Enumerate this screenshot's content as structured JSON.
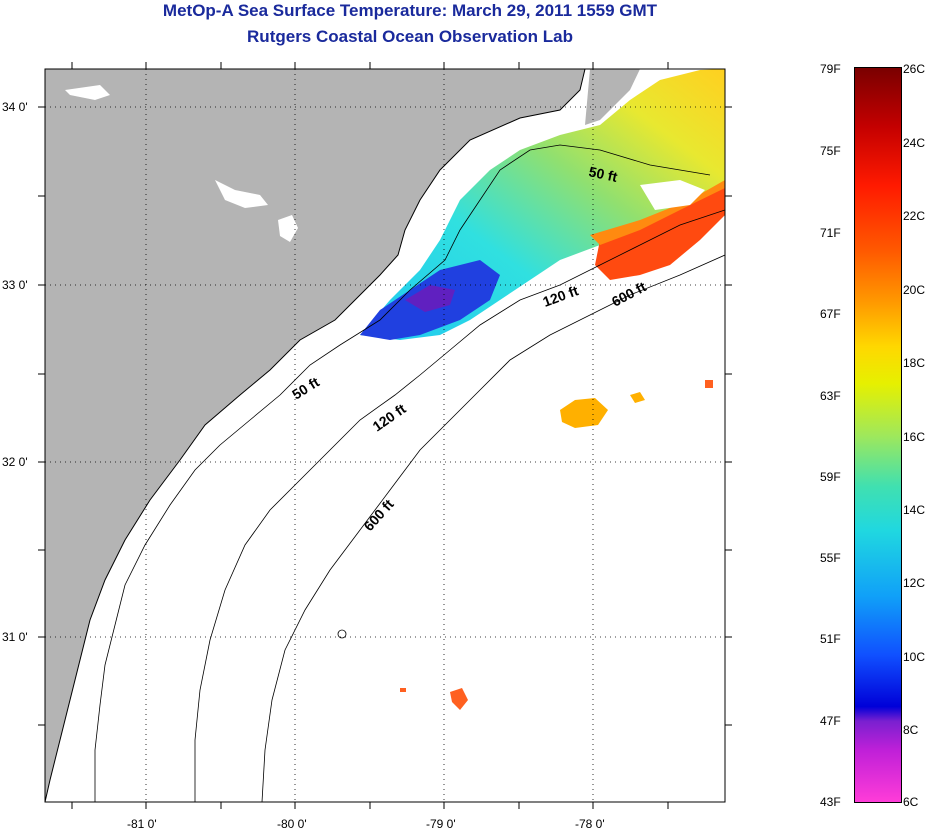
{
  "title_line1": "MetOp-A Sea Surface Temperature:  March 29, 2011 1559 GMT",
  "title_line2": "Rutgers Coastal Ocean Observation Lab",
  "map": {
    "lat_labels": [
      "34 0'",
      "33 0'",
      "32 0'",
      "31 0'"
    ],
    "lon_labels": [
      "-81 0'",
      "-80 0'",
      "-79 0'",
      "-78 0'"
    ],
    "contour_labels": [
      "50 ft",
      "50 ft",
      "120 ft",
      "120 ft",
      "600 ft",
      "600 ft"
    ],
    "colors": {
      "land": "#b4b4b4",
      "ocean_no_data": "#ffffff",
      "grid": "#000000"
    }
  },
  "colorbar": {
    "fahrenheit": [
      "79F",
      "75F",
      "71F",
      "67F",
      "63F",
      "59F",
      "55F",
      "51F",
      "47F",
      "43F"
    ],
    "celsius": [
      "26C",
      "24C",
      "22C",
      "20C",
      "18C",
      "16C",
      "14C",
      "12C",
      "10C",
      "8C",
      "6C"
    ]
  }
}
